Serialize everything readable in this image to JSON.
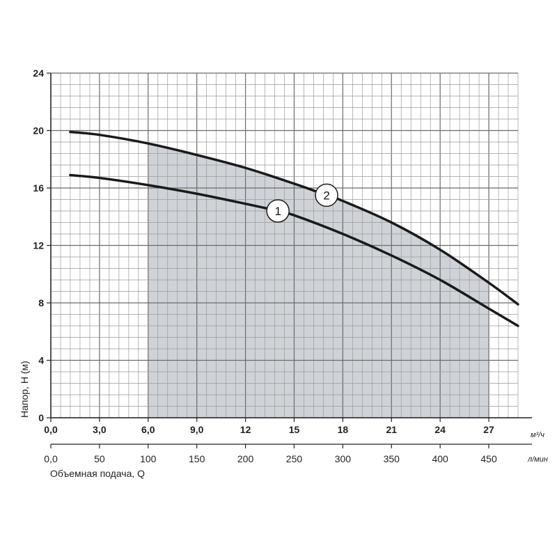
{
  "chart_data": {
    "type": "line",
    "ylabel": "Напор, H (м)",
    "xlabel": "Объемная подача, Q",
    "x_unit_primary": "м³/ч",
    "x_unit_secondary": "л/мин",
    "xlim": [
      0,
      30
    ],
    "ylim": [
      0,
      24
    ],
    "grid": true,
    "y_ticks": [
      "0",
      "4",
      "8",
      "12",
      "16",
      "20",
      "24"
    ],
    "y_tick_values": [
      0,
      4,
      8,
      12,
      16,
      20,
      24
    ],
    "x_ticks_primary": [
      "0,0",
      "3,0",
      "6,0",
      "9,0",
      "12",
      "15",
      "18",
      "21",
      "24",
      "27"
    ],
    "x_ticks_primary_values": [
      0,
      3,
      6,
      9,
      12,
      15,
      18,
      21,
      24,
      27
    ],
    "x_ticks_secondary": [
      "0,0",
      "50",
      "100",
      "150",
      "200",
      "250",
      "300",
      "350",
      "400",
      "450"
    ],
    "x_ticks_secondary_values": [
      0,
      50,
      100,
      150,
      200,
      250,
      300,
      350,
      400,
      450
    ],
    "working_range": {
      "x_from": 6,
      "x_to": 27
    },
    "series": [
      {
        "label": "1",
        "x": [
          1.2,
          3,
          6,
          9,
          12,
          14,
          15,
          18,
          21,
          24,
          27,
          28.8
        ],
        "y": [
          16.9,
          16.7,
          16.2,
          15.6,
          14.9,
          14.4,
          14.1,
          12.8,
          11.3,
          9.6,
          7.6,
          6.4
        ]
      },
      {
        "label": "2",
        "x": [
          1.2,
          3,
          6,
          9,
          12,
          15,
          17,
          18,
          21,
          24,
          27,
          28.8
        ],
        "y": [
          19.9,
          19.7,
          19.1,
          18.3,
          17.4,
          16.3,
          15.5,
          15.1,
          13.6,
          11.7,
          9.4,
          7.9
        ]
      }
    ]
  }
}
